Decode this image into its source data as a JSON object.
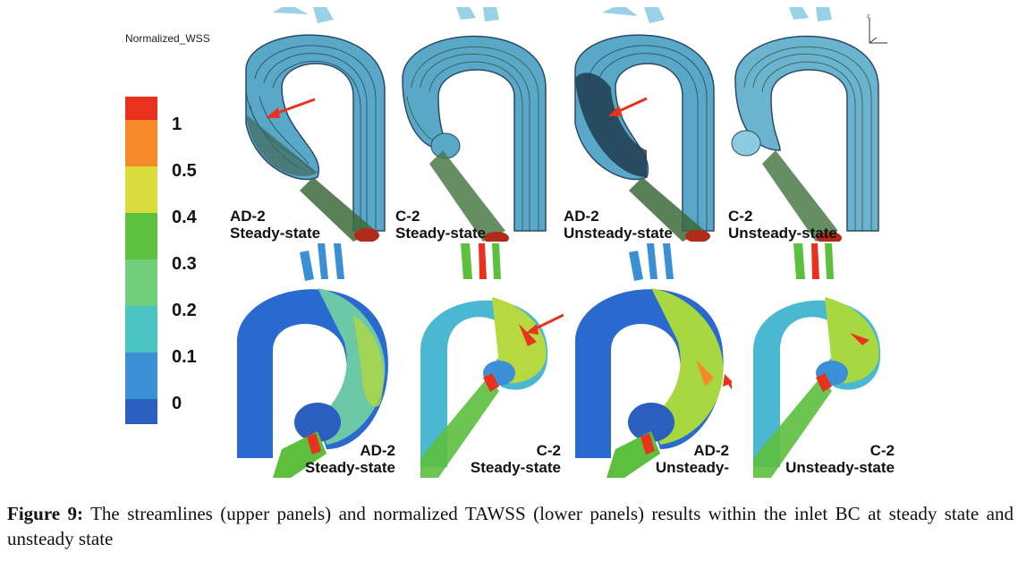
{
  "figure": {
    "colorbar": {
      "title": "Normalized_WSS",
      "ticks": [
        "1",
        "0.5",
        "0.4",
        "0.3",
        "0.2",
        "0.1",
        "0"
      ],
      "colors": [
        "#e8321e",
        "#f58a2a",
        "#d9dc3a",
        "#5cbf3e",
        "#7fd68a",
        "#49c6c2",
        "#3b8fd4",
        "#2a5fbf"
      ]
    },
    "upper_panels": [
      {
        "line1": "AD-2",
        "line2": "Steady-state"
      },
      {
        "line1": "C-2",
        "line2": "Steady-state"
      },
      {
        "line1": "AD-2",
        "line2": "Unsteady-state"
      },
      {
        "line1": "C-2",
        "line2": "Unsteady-state"
      }
    ],
    "lower_panels": [
      {
        "line1": "AD-2",
        "line2": "Steady-state"
      },
      {
        "line1": "C-2",
        "line2": "Steady-state"
      },
      {
        "line1": "AD-2",
        "line2": "Unsteady-state"
      },
      {
        "line1": "C-2",
        "line2": "Unsteady-state"
      }
    ],
    "caption": {
      "label": "Figure 9:",
      "text": "The streamlines (upper panels) and normalized TAWSS (lower panels) results within the inlet BC at steady state and unsteady state"
    }
  }
}
